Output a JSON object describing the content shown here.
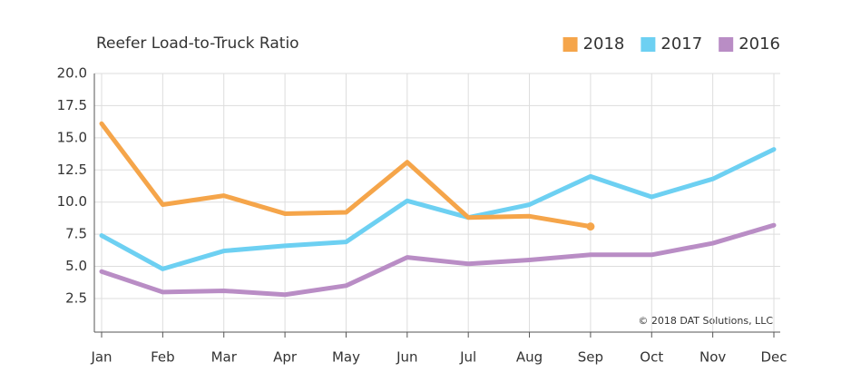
{
  "chart_data": {
    "type": "line",
    "title": "Reefer Load-to-Truck Ratio",
    "annotation": "© 2018 DAT Solutions, LLC",
    "categories": [
      "Jan",
      "Feb",
      "Mar",
      "Apr",
      "May",
      "Jun",
      "Jul",
      "Aug",
      "Sep",
      "Oct",
      "Nov",
      "Dec"
    ],
    "series": [
      {
        "name": "2018",
        "color": "#f5a54a",
        "values": [
          16.1,
          9.8,
          10.5,
          9.1,
          9.2,
          13.1,
          8.8,
          8.9,
          8.1,
          null,
          null,
          null
        ]
      },
      {
        "name": "2017",
        "color": "#6dd0f2",
        "values": [
          7.4,
          4.8,
          6.2,
          6.6,
          6.9,
          10.1,
          8.8,
          9.8,
          12.0,
          10.4,
          11.8,
          14.1
        ]
      },
      {
        "name": "2016",
        "color": "#b98dc5",
        "values": [
          4.6,
          3.0,
          3.1,
          2.8,
          3.5,
          5.7,
          5.2,
          5.5,
          5.9,
          5.9,
          6.8,
          8.2
        ]
      }
    ],
    "ylim": [
      0,
      20
    ],
    "yticks": [
      2.5,
      {
        "value": 5,
        "label": "5.0"
      },
      7.5,
      {
        "value": 10,
        "label": "10.0"
      },
      12.5,
      {
        "value": 15,
        "label": "15.0"
      },
      17.5,
      {
        "value": 20,
        "label": "20.0"
      }
    ],
    "grid": true,
    "legend": "top-right"
  }
}
